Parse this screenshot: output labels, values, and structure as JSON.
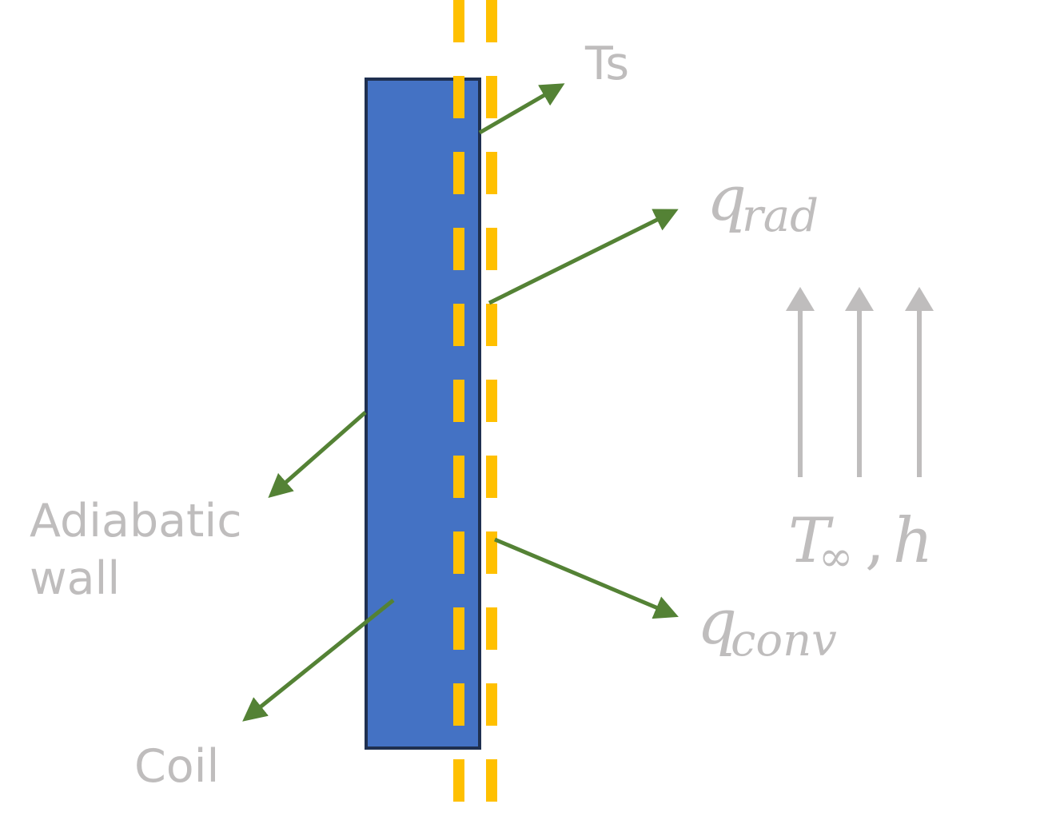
{
  "colors": {
    "background": "#ffffff",
    "wall_fill": "#4472c4",
    "wall_border": "#1f3050",
    "dashes": "#ffc000",
    "arrows": "#548235",
    "flow_arrows": "#bfbdbd",
    "labels": "#bfbdbd"
  },
  "labels": {
    "ts": "Ts",
    "q_rad": {
      "base": "q",
      "sub": "rad"
    },
    "q_conv": {
      "base": "q",
      "sub": "conv"
    },
    "ambient": {
      "t": "T",
      "inf": "∞",
      "sep": ",",
      "h": "h"
    },
    "adiabatic_line1": "Adiabatic",
    "adiabatic_line2": "wall",
    "coil": "Coil"
  }
}
